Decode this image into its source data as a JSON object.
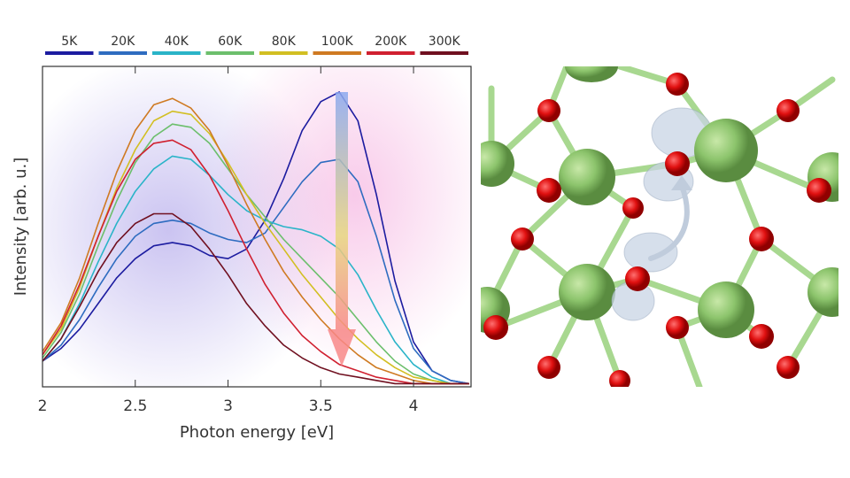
{
  "chart_data": {
    "type": "line",
    "x_label": "Photon energy [eV]",
    "y_label": "Intensity [arb. u.]",
    "x": [
      2.0,
      2.1,
      2.2,
      2.3,
      2.4,
      2.5,
      2.6,
      2.7,
      2.8,
      2.9,
      3.0,
      3.1,
      3.2,
      3.3,
      3.4,
      3.5,
      3.6,
      3.7,
      3.8,
      3.9,
      4.0,
      4.1,
      4.2,
      4.3
    ],
    "xlim": [
      2,
      4.31
    ],
    "xticks": [
      2,
      2.5,
      3,
      3.5,
      4
    ],
    "ylim": [
      0,
      1
    ],
    "series": [
      {
        "name": "5K",
        "color": "#1c1ca0",
        "values": [
          0.08,
          0.12,
          0.18,
          0.26,
          0.34,
          0.4,
          0.44,
          0.45,
          0.44,
          0.41,
          0.4,
          0.43,
          0.52,
          0.65,
          0.8,
          0.89,
          0.92,
          0.83,
          0.6,
          0.33,
          0.14,
          0.05,
          0.02,
          0.01
        ]
      },
      {
        "name": "20K",
        "color": "#2e6cc0",
        "values": [
          0.08,
          0.13,
          0.21,
          0.31,
          0.4,
          0.47,
          0.51,
          0.52,
          0.51,
          0.48,
          0.46,
          0.45,
          0.48,
          0.56,
          0.64,
          0.7,
          0.71,
          0.64,
          0.47,
          0.27,
          0.12,
          0.05,
          0.02,
          0.01
        ]
      },
      {
        "name": "40K",
        "color": "#2ab4c8",
        "values": [
          0.08,
          0.15,
          0.26,
          0.39,
          0.51,
          0.61,
          0.68,
          0.72,
          0.71,
          0.66,
          0.6,
          0.55,
          0.52,
          0.5,
          0.49,
          0.47,
          0.43,
          0.35,
          0.24,
          0.14,
          0.07,
          0.03,
          0.01,
          0.01
        ]
      },
      {
        "name": "60K",
        "color": "#6cbf6c",
        "values": [
          0.09,
          0.17,
          0.29,
          0.44,
          0.58,
          0.7,
          0.78,
          0.82,
          0.81,
          0.76,
          0.68,
          0.6,
          0.53,
          0.46,
          0.4,
          0.34,
          0.28,
          0.21,
          0.14,
          0.08,
          0.04,
          0.02,
          0.01,
          0.01
        ]
      },
      {
        "name": "80K",
        "color": "#d2bf22",
        "values": [
          0.1,
          0.18,
          0.31,
          0.47,
          0.62,
          0.74,
          0.83,
          0.86,
          0.85,
          0.79,
          0.7,
          0.6,
          0.51,
          0.43,
          0.35,
          0.28,
          0.21,
          0.15,
          0.1,
          0.06,
          0.03,
          0.02,
          0.01,
          0.01
        ]
      },
      {
        "name": "100K",
        "color": "#cf7a22",
        "values": [
          0.11,
          0.2,
          0.34,
          0.51,
          0.67,
          0.8,
          0.88,
          0.9,
          0.87,
          0.8,
          0.69,
          0.57,
          0.46,
          0.36,
          0.28,
          0.21,
          0.15,
          0.1,
          0.06,
          0.04,
          0.02,
          0.01,
          0.01,
          0.01
        ]
      },
      {
        "name": "200K",
        "color": "#d02030",
        "values": [
          0.1,
          0.19,
          0.32,
          0.47,
          0.61,
          0.71,
          0.76,
          0.77,
          0.74,
          0.66,
          0.55,
          0.43,
          0.32,
          0.23,
          0.16,
          0.11,
          0.07,
          0.05,
          0.03,
          0.02,
          0.01,
          0.01,
          0.01,
          0.01
        ]
      },
      {
        "name": "300K",
        "color": "#701020",
        "values": [
          0.08,
          0.15,
          0.25,
          0.36,
          0.45,
          0.51,
          0.54,
          0.54,
          0.5,
          0.43,
          0.35,
          0.26,
          0.19,
          0.13,
          0.09,
          0.06,
          0.04,
          0.03,
          0.02,
          0.01,
          0.01,
          0.01,
          0.01,
          0.01
        ]
      }
    ]
  }
}
